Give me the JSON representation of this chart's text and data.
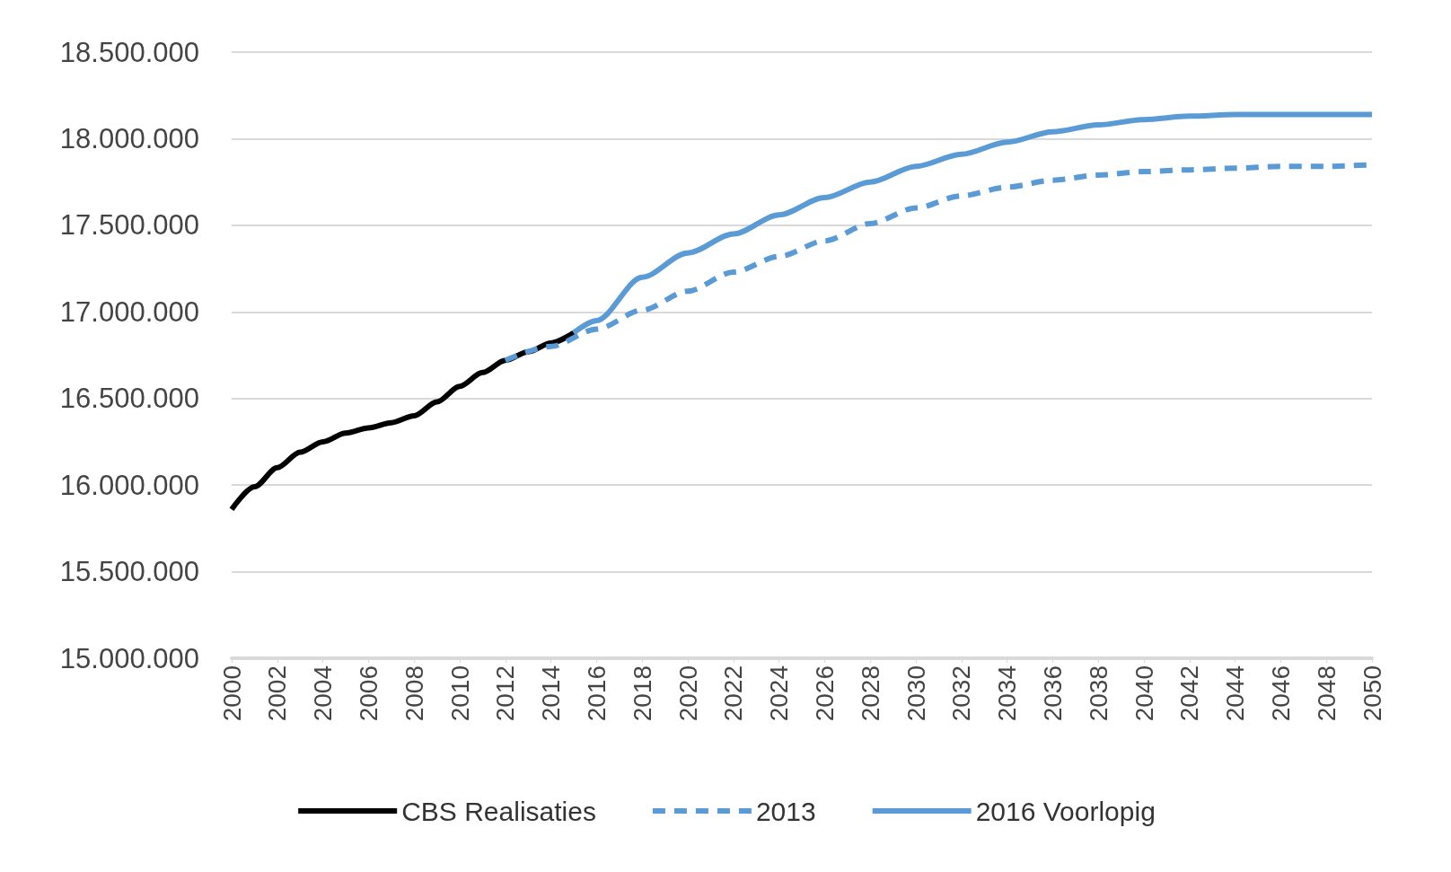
{
  "chart_data": {
    "type": "line",
    "marker": "none",
    "grid": "y",
    "legend": "bottom",
    "xlim": [
      2000,
      2050
    ],
    "xticks": [
      2000,
      2002,
      2004,
      2006,
      2008,
      2010,
      2012,
      2014,
      2016,
      2018,
      2020,
      2022,
      2024,
      2026,
      2028,
      2030,
      2032,
      2034,
      2036,
      2038,
      2040,
      2042,
      2044,
      2046,
      2048,
      2050
    ],
    "ylim": [
      15000000,
      18500000
    ],
    "yticks": [
      {
        "value": 15000000,
        "label": "15.000.000"
      },
      {
        "value": 15500000,
        "label": "15.500.000"
      },
      {
        "value": 16000000,
        "label": "16.000.000"
      },
      {
        "value": 16500000,
        "label": "16.500.000"
      },
      {
        "value": 17000000,
        "label": "17.000.000"
      },
      {
        "value": 17500000,
        "label": "17.500.000"
      },
      {
        "value": 18000000,
        "label": "18.000.000"
      },
      {
        "value": 18500000,
        "label": "18.500.000"
      }
    ],
    "series": [
      {
        "name": "CBS Realisaties",
        "color": "#000000",
        "line_style": "solid",
        "x": [
          2000,
          2001,
          2002,
          2003,
          2004,
          2005,
          2006,
          2007,
          2008,
          2009,
          2010,
          2011,
          2012,
          2013,
          2014,
          2015
        ],
        "values": [
          15860000,
          15990000,
          16100000,
          16190000,
          16250000,
          16300000,
          16330000,
          16360000,
          16400000,
          16480000,
          16570000,
          16650000,
          16720000,
          16770000,
          16820000,
          16880000
        ]
      },
      {
        "name": "2013",
        "color": "#5b9bd5",
        "line_style": "dashed",
        "x": [
          2012,
          2014,
          2016,
          2018,
          2020,
          2022,
          2024,
          2026,
          2028,
          2030,
          2032,
          2034,
          2036,
          2038,
          2040,
          2042,
          2044,
          2046,
          2048,
          2050
        ],
        "values": [
          16720000,
          16800000,
          16900000,
          17010000,
          17120000,
          17230000,
          17320000,
          17410000,
          17510000,
          17600000,
          17670000,
          17720000,
          17760000,
          17790000,
          17810000,
          17820000,
          17830000,
          17840000,
          17840000,
          17850000
        ]
      },
      {
        "name": "2016 Voorlopig",
        "color": "#5b9bd5",
        "line_style": "solid",
        "x": [
          2015,
          2016,
          2018,
          2020,
          2022,
          2024,
          2026,
          2028,
          2030,
          2032,
          2034,
          2036,
          2038,
          2040,
          2042,
          2044,
          2046,
          2048,
          2050
        ],
        "values": [
          16880000,
          16950000,
          17200000,
          17340000,
          17450000,
          17560000,
          17660000,
          17750000,
          17840000,
          17910000,
          17980000,
          18040000,
          18080000,
          18110000,
          18130000,
          18140000,
          18140000,
          18140000,
          18140000
        ]
      }
    ]
  }
}
